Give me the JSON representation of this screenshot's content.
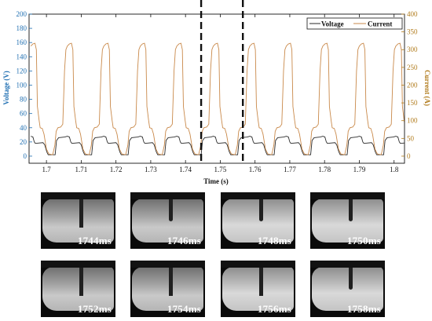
{
  "chart_data": {
    "type": "line",
    "xlabel": "Time (s)",
    "ylabel_left": "Voltage (V)",
    "ylabel_right": "Current (A)",
    "xlim": [
      1.695,
      1.803
    ],
    "ylim_left": [
      -10,
      200
    ],
    "ylim_right": [
      -20,
      400
    ],
    "x_ticks": [
      "1.7",
      "1.71",
      "1.72",
      "1.73",
      "1.74",
      "1.75",
      "1.76",
      "1.77",
      "1.78",
      "1.79",
      "1.8"
    ],
    "y_ticks_left": [
      "0",
      "20",
      "40",
      "60",
      "80",
      "100",
      "120",
      "140",
      "160",
      "180",
      "200"
    ],
    "y_ticks_right": [
      "0",
      "50",
      "100",
      "150",
      "200",
      "250",
      "300",
      "350",
      "400"
    ],
    "legend": [
      "Voltage",
      "Current"
    ],
    "legend_position": "top-right",
    "grid": false,
    "markers_x": [
      1.7445,
      1.7565
    ],
    "cycle_period_s": 0.0105,
    "first_cycle_start_s": 1.6955,
    "series": [
      {
        "name": "Voltage",
        "axis": "left",
        "color": "#2a2a2a",
        "waveform": {
          "description": "per-cycle key points (time offset s, voltage V)",
          "points": [
            [
              0.0,
              28
            ],
            [
              0.0006,
              27
            ],
            [
              0.001,
              20
            ],
            [
              0.0013,
              18
            ],
            [
              0.0035,
              19
            ],
            [
              0.004,
              16
            ],
            [
              0.0046,
              6
            ],
            [
              0.005,
              2
            ],
            [
              0.007,
              2
            ],
            [
              0.0074,
              22
            ],
            [
              0.008,
              26
            ],
            [
              0.0098,
              27
            ],
            [
              0.0105,
              28
            ]
          ]
        }
      },
      {
        "name": "Current",
        "axis": "right",
        "color": "#c9894a",
        "waveform": {
          "description": "per-cycle key points (time offset s, current A)",
          "points": [
            [
              0.0,
              310
            ],
            [
              0.0006,
              316
            ],
            [
              0.0012,
              318
            ],
            [
              0.0016,
              300
            ],
            [
              0.0019,
              140
            ],
            [
              0.0024,
              100
            ],
            [
              0.0027,
              80
            ],
            [
              0.0033,
              78
            ],
            [
              0.0038,
              62
            ],
            [
              0.0045,
              20
            ],
            [
              0.0052,
              6
            ],
            [
              0.0063,
              4
            ],
            [
              0.0069,
              30
            ],
            [
              0.0073,
              70
            ],
            [
              0.0078,
              80
            ],
            [
              0.0086,
              82
            ],
            [
              0.0092,
              90
            ],
            [
              0.0097,
              240
            ],
            [
              0.0101,
              300
            ],
            [
              0.0105,
              310
            ]
          ]
        }
      }
    ]
  },
  "frames": [
    {
      "label": "1744ms",
      "tone": "dark",
      "tip": false
    },
    {
      "label": "1746ms",
      "tone": "dark",
      "tip": true
    },
    {
      "label": "1748ms",
      "tone": "light",
      "tip": true
    },
    {
      "label": "1750ms",
      "tone": "light",
      "tip": true
    },
    {
      "label": "1752ms",
      "tone": "dark",
      "tip": false
    },
    {
      "label": "1754ms",
      "tone": "dark",
      "tip": false
    },
    {
      "label": "1756ms",
      "tone": "light",
      "tip": false
    },
    {
      "label": "1758ms",
      "tone": "light",
      "tip": true
    }
  ],
  "colors": {
    "voltage_axis": "#1f6fb2",
    "current_axis": "#b07a1a",
    "marker_line": "#111111"
  }
}
